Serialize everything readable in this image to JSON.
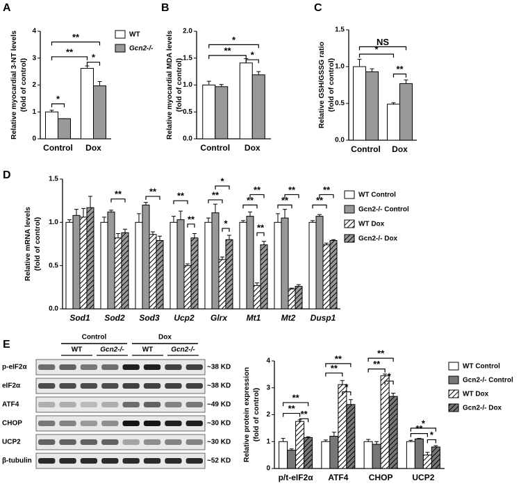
{
  "chart_data": [
    {
      "type": "bar",
      "panel": "A",
      "ylabel": [
        "Relative myocardial 3-NT levels",
        "(fold of control)"
      ],
      "categories": [
        "Control",
        "Dox"
      ],
      "series": [
        {
          "name": "WT",
          "color": "#ffffff",
          "values": [
            1.0,
            2.62
          ],
          "errors": [
            0.06,
            0.09
          ]
        },
        {
          "name": "Gcn2-/-",
          "color": "#999999",
          "values": [
            0.75,
            1.97
          ],
          "errors": [
            0.0,
            0.16
          ]
        }
      ],
      "ylim": [
        0,
        4
      ],
      "yticks": [
        0,
        1,
        2,
        3,
        4
      ],
      "legend": "upper right outside",
      "annotations": [
        "*",
        "**",
        "**",
        "*"
      ]
    },
    {
      "type": "bar",
      "panel": "B",
      "ylabel": [
        "Relative myocardial MDA levels",
        "(fold of control)"
      ],
      "categories": [
        "Control",
        "Dox"
      ],
      "series": [
        {
          "name": "WT",
          "color": "#ffffff",
          "values": [
            1.0,
            1.41
          ],
          "errors": [
            0.07,
            0.08
          ]
        },
        {
          "name": "Gcn2-/-",
          "color": "#999999",
          "values": [
            0.97,
            1.19
          ],
          "errors": [
            0.04,
            0.06
          ]
        }
      ],
      "ylim": [
        0,
        2.0
      ],
      "yticks": [
        {
          "value": 0,
          "label": "0.0"
        },
        0.5,
        {
          "value": 1,
          "label": "1.0"
        },
        1.5,
        {
          "value": 2,
          "label": "2.0"
        }
      ],
      "annotations": [
        "*",
        "**",
        "*"
      ]
    },
    {
      "type": "bar",
      "panel": "C",
      "ylabel": [
        "Relative GSH/GSSG ratio",
        "(fold of control)"
      ],
      "categories": [
        "Control",
        "Dox"
      ],
      "series": [
        {
          "name": "WT",
          "color": "#ffffff",
          "values": [
            1.0,
            0.49
          ],
          "errors": [
            0.1,
            0.02
          ]
        },
        {
          "name": "Gcn2-/-",
          "color": "#999999",
          "values": [
            0.93,
            0.77
          ],
          "errors": [
            0.04,
            0.05
          ]
        }
      ],
      "ylim": [
        0,
        1.5
      ],
      "yticks": [
        {
          "value": 0,
          "label": "0.0"
        },
        0.5,
        {
          "value": 1,
          "label": "1.0"
        },
        1.5
      ],
      "annotations": [
        "NS",
        "*",
        "**"
      ]
    },
    {
      "type": "bar",
      "panel": "D",
      "ylabel": [
        "Relative mRNA levels",
        "(fold of control)"
      ],
      "categories": [
        "Sod1",
        "Sod2",
        "Sod3",
        "Ucp2",
        "Glrx",
        "Mt1",
        "Mt2",
        "Dusp1"
      ],
      "italic_categories": true,
      "series": [
        {
          "name": "WT Control",
          "color": "#ffffff",
          "values": [
            1.0,
            1.0,
            1.0,
            1.0,
            1.0,
            1.0,
            1.0,
            1.0
          ],
          "errors": [
            0.03,
            0.06,
            0.1,
            0.07,
            0.05,
            0.02,
            0.1,
            0.02
          ]
        },
        {
          "name": "Gcn2-/- Control",
          "color": "#999999",
          "values": [
            1.08,
            1.12,
            1.2,
            1.03,
            1.11,
            1.07,
            1.05,
            1.07
          ],
          "errors": [
            0.07,
            0.02,
            0.03,
            0.1,
            0.1,
            0.05,
            0.1,
            0.02
          ]
        },
        {
          "name": "WT Dox",
          "color": "#ffffff",
          "pattern": "hatch",
          "values": [
            1.06,
            0.82,
            0.86,
            0.5,
            0.57,
            0.27,
            0.23,
            0.74
          ],
          "errors": [
            0.1,
            0.05,
            0.03,
            0.02,
            0.03,
            0.03,
            0.01,
            0.02
          ]
        },
        {
          "name": "Gcn2-/- Dox",
          "color": "#999999",
          "pattern": "hatch",
          "values": [
            1.17,
            0.88,
            0.79,
            0.82,
            0.8,
            0.74,
            0.26,
            0.79
          ],
          "errors": [
            0.13,
            0.04,
            0.05,
            0.05,
            0.05,
            0.04,
            0.02,
            0.01
          ]
        }
      ],
      "ylim": [
        0,
        1.5
      ],
      "yticks": [
        {
          "value": 0,
          "label": "0.0"
        },
        0.5,
        {
          "value": 1,
          "label": "1.0"
        },
        1.5
      ],
      "legend": "right outside",
      "annotations": [
        "**",
        "**",
        "**",
        "**",
        "*",
        "**",
        "*",
        "**",
        "**",
        "**",
        "**",
        "**",
        "**",
        "**"
      ]
    },
    {
      "type": "bar",
      "panel": "E",
      "ylabel": [
        "Relative protein expression",
        "(fold of control)"
      ],
      "categories": [
        "p/t-eIF2α",
        "ATF4",
        "CHOP",
        "UCP2"
      ],
      "series": [
        {
          "name": "WT Control",
          "color": "#ffffff",
          "values": [
            1.0,
            1.0,
            1.0,
            1.0
          ],
          "errors": [
            0.12,
            0.06,
            0.08,
            0.05
          ]
        },
        {
          "name": "Gcn2-/- Control",
          "color": "#777777",
          "values": [
            0.68,
            1.2,
            0.9,
            1.1
          ],
          "errors": [
            0.05,
            0.15,
            0.1,
            0.02
          ]
        },
        {
          "name": "WT Dox",
          "color": "#ffffff",
          "pattern": "hatch",
          "values": [
            1.75,
            3.12,
            3.45,
            0.5
          ],
          "errors": [
            0.06,
            0.15,
            0.06,
            0.1
          ]
        },
        {
          "name": "Gcn2-/- Dox",
          "color": "#777777",
          "pattern": "hatch",
          "values": [
            1.15,
            2.38,
            2.68,
            0.8
          ],
          "errors": [
            0.03,
            0.18,
            0.12,
            0.05
          ]
        }
      ],
      "ylim": [
        0,
        4
      ],
      "yticks": [
        0,
        1,
        2,
        3,
        4
      ],
      "legend": "upper right",
      "annotations": [
        "**",
        "**",
        "**",
        "**",
        "**",
        "*",
        "**",
        "**",
        "*",
        "*",
        "**",
        "*"
      ]
    }
  ],
  "blot": {
    "groups": [
      "Control",
      "Dox"
    ],
    "genotypes": [
      "WT",
      "Gcn2-/-",
      "WT",
      "Gcn2-/-"
    ],
    "rows": [
      {
        "label": "p-eIF2α",
        "size": "~38 KD"
      },
      {
        "label": "eIF2α",
        "size": "~38 KD"
      },
      {
        "label": "ATF4",
        "size": "~49 KD"
      },
      {
        "label": "CHOP",
        "size": "~30 KD"
      },
      {
        "label": "UCP2",
        "size": "~30 KD"
      },
      {
        "label": "β-tubulin",
        "size": "~52 KD"
      }
    ]
  }
}
